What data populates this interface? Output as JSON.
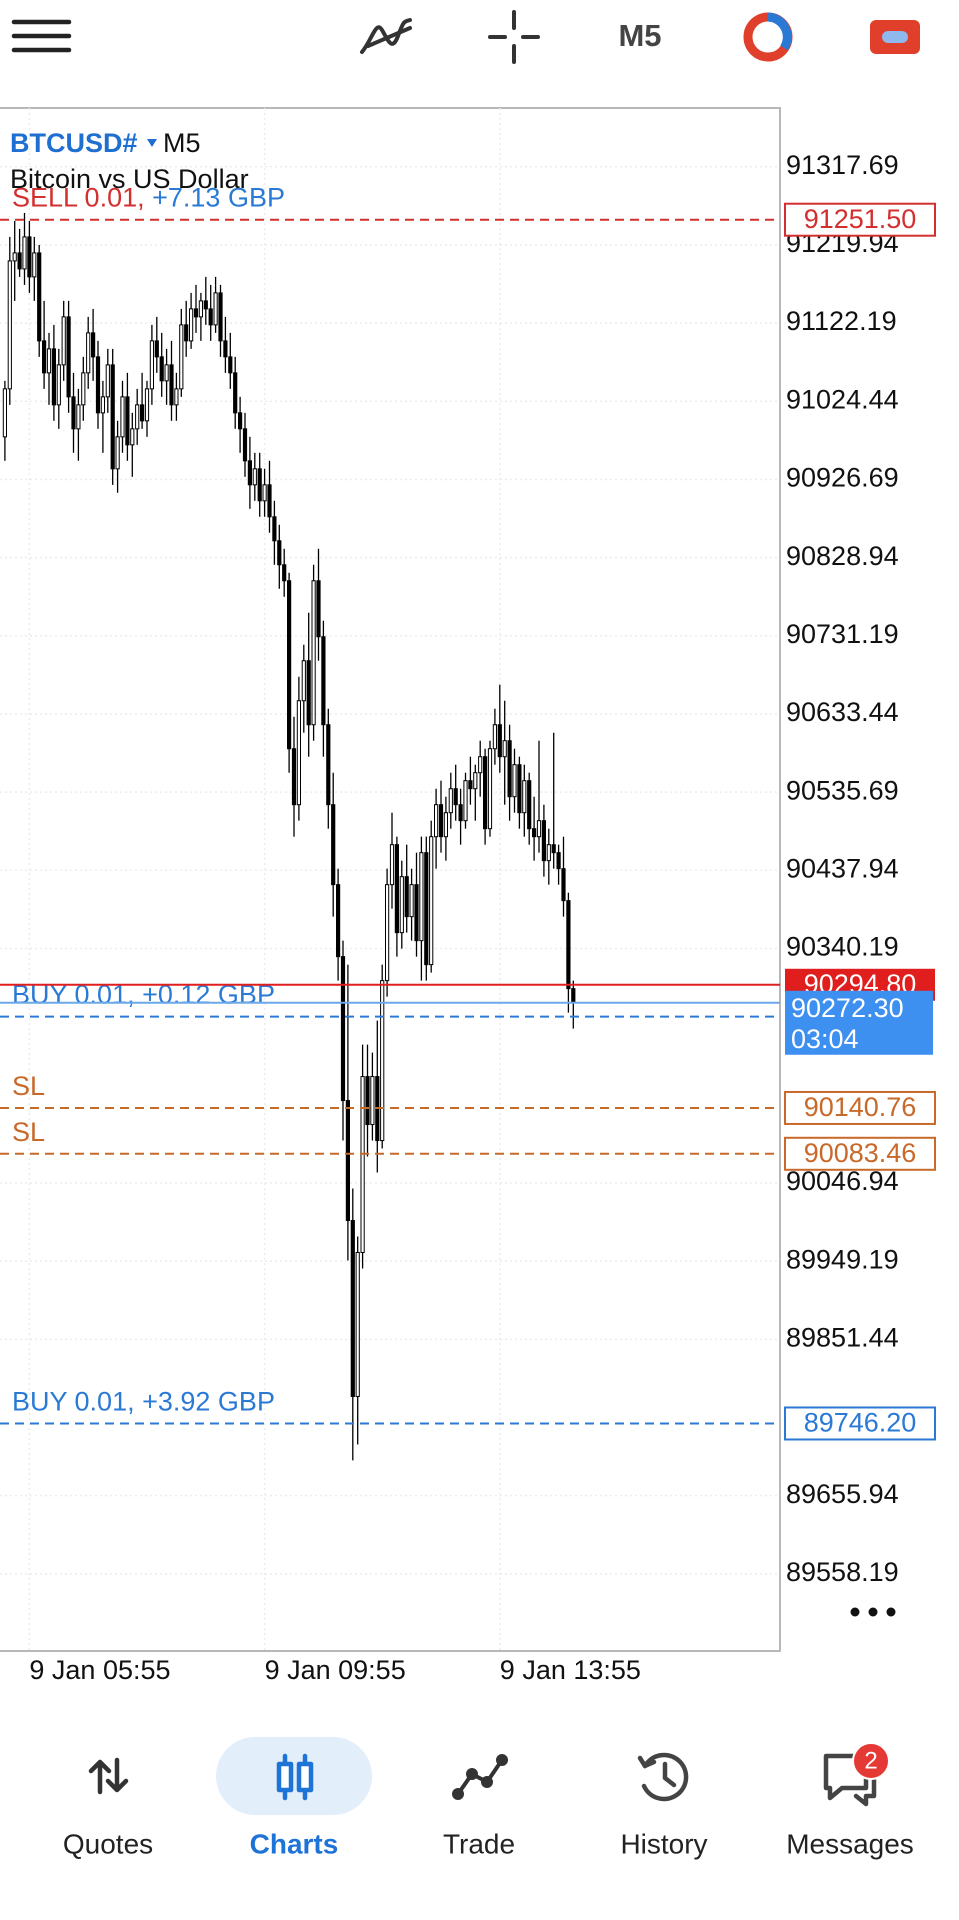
{
  "ui": {
    "toolbar": {
      "timeframe": "M5"
    },
    "symbol": {
      "name": "BTCUSD#",
      "timeframe": "M5",
      "description": "Bitcoin vs US Dollar"
    },
    "nav": [
      {
        "label": "Quotes"
      },
      {
        "label": "Charts",
        "active": true
      },
      {
        "label": "Trade"
      },
      {
        "label": "History"
      },
      {
        "label": "Messages",
        "badge": 2
      }
    ]
  },
  "chart_data": {
    "type": "candlestick",
    "ylim": [
      89461.7,
      91391.2
    ],
    "yticks": [
      91317.69,
      91219.94,
      91122.19,
      91024.44,
      90926.69,
      90828.94,
      90731.19,
      90633.44,
      90535.69,
      90437.94,
      90340.19,
      90046.94,
      89949.19,
      89851.44,
      89655.94,
      89558.19
    ],
    "grid": true,
    "candle_color": "#000000",
    "profit_color": "#2a7ad5",
    "categories": [
      null,
      null,
      null,
      null,
      null,
      "9 Jan 05:55",
      null,
      null,
      null,
      null,
      null,
      null,
      null,
      null,
      null,
      null,
      null,
      null,
      null,
      null,
      null,
      null,
      null,
      null,
      null,
      null,
      null,
      null,
      null,
      null,
      null,
      null,
      null,
      null,
      null,
      null,
      null,
      null,
      null,
      null,
      null,
      null,
      null,
      null,
      null,
      null,
      null,
      null,
      null,
      null,
      null,
      null,
      null,
      "9 Jan 09:55",
      null,
      null,
      null,
      null,
      null,
      null,
      null,
      null,
      null,
      null,
      null,
      null,
      null,
      null,
      null,
      null,
      null,
      null,
      null,
      null,
      null,
      null,
      null,
      null,
      null,
      null,
      null,
      null,
      null,
      null,
      null,
      null,
      null,
      null,
      null,
      null,
      null,
      null,
      null,
      null,
      null,
      null,
      null,
      null,
      null,
      null,
      null,
      "9 Jan 13:55",
      null,
      null,
      null,
      null,
      null,
      null,
      null,
      null,
      null,
      null,
      null,
      null,
      null,
      null,
      null
    ],
    "ohlc": [
      [
        90980,
        91050,
        90950,
        91040
      ],
      [
        91040,
        91230,
        91020,
        91200
      ],
      [
        91200,
        91250,
        91150,
        91210
      ],
      [
        91210,
        91240,
        91180,
        91190
      ],
      [
        91190,
        91260,
        91170,
        91230
      ],
      [
        91230,
        91250,
        91160,
        91180
      ],
      [
        91180,
        91230,
        91150,
        91210
      ],
      [
        91210,
        91220,
        91080,
        91100
      ],
      [
        91100,
        91150,
        91040,
        91060
      ],
      [
        91060,
        91110,
        91020,
        91090
      ],
      [
        91090,
        91120,
        91000,
        91020
      ],
      [
        91020,
        91090,
        90990,
        91070
      ],
      [
        91070,
        91150,
        91050,
        91130
      ],
      [
        91130,
        91150,
        91010,
        91030
      ],
      [
        91030,
        91060,
        90960,
        90990
      ],
      [
        90990,
        91040,
        90950,
        91020
      ],
      [
        91020,
        91080,
        91000,
        91060
      ],
      [
        91060,
        91130,
        91040,
        91110
      ],
      [
        91110,
        91140,
        91050,
        91080
      ],
      [
        91080,
        91100,
        90990,
        91010
      ],
      [
        91010,
        91050,
        90960,
        91030
      ],
      [
        91030,
        91090,
        91010,
        91070
      ],
      [
        91070,
        91090,
        90920,
        90940
      ],
      [
        90940,
        91000,
        90910,
        90980
      ],
      [
        90980,
        91050,
        90960,
        91030
      ],
      [
        91030,
        91060,
        90950,
        90970
      ],
      [
        90970,
        91010,
        90930,
        90990
      ],
      [
        90990,
        91040,
        90970,
        91020
      ],
      [
        91020,
        91060,
        90990,
        91000
      ],
      [
        91000,
        91050,
        90980,
        91040
      ],
      [
        91040,
        91120,
        91020,
        91100
      ],
      [
        91100,
        91130,
        91060,
        91080
      ],
      [
        91080,
        91110,
        91030,
        91050
      ],
      [
        91050,
        91090,
        91020,
        91070
      ],
      [
        91070,
        91100,
        91000,
        91020
      ],
      [
        91020,
        91060,
        91000,
        91040
      ],
      [
        91040,
        91140,
        91030,
        91120
      ],
      [
        91120,
        91150,
        91080,
        91100
      ],
      [
        91100,
        91160,
        91090,
        91140
      ],
      [
        91140,
        91170,
        91110,
        91130
      ],
      [
        91130,
        91160,
        91100,
        91150
      ],
      [
        91150,
        91180,
        91120,
        91140
      ],
      [
        91140,
        91170,
        91100,
        91120
      ],
      [
        91120,
        91180,
        91110,
        91160
      ],
      [
        91160,
        91170,
        91080,
        91100
      ],
      [
        91100,
        91130,
        91060,
        91080
      ],
      [
        91080,
        91110,
        91040,
        91060
      ],
      [
        91060,
        91080,
        90990,
        91010
      ],
      [
        91010,
        91030,
        90960,
        90990
      ],
      [
        90990,
        91010,
        90930,
        90950
      ],
      [
        90950,
        90980,
        90890,
        90920
      ],
      [
        90920,
        90960,
        90900,
        90940
      ],
      [
        90940,
        90960,
        90880,
        90900
      ],
      [
        90900,
        90940,
        90880,
        90920
      ],
      [
        90920,
        90950,
        90860,
        90880
      ],
      [
        90880,
        90900,
        90820,
        90850
      ],
      [
        90850,
        90870,
        90790,
        90820
      ],
      [
        90820,
        90840,
        90780,
        90800
      ],
      [
        90800,
        90810,
        90560,
        90590
      ],
      [
        90590,
        90630,
        90480,
        90520
      ],
      [
        90520,
        90680,
        90500,
        90650
      ],
      [
        90650,
        90720,
        90610,
        90700
      ],
      [
        90700,
        90760,
        90580,
        90620
      ],
      [
        90620,
        90820,
        90600,
        90800
      ],
      [
        90800,
        90840,
        90700,
        90730
      ],
      [
        90730,
        90750,
        90580,
        90620
      ],
      [
        90620,
        90640,
        90490,
        90520
      ],
      [
        90520,
        90560,
        90380,
        90420
      ],
      [
        90420,
        90440,
        90300,
        90330
      ],
      [
        90330,
        90350,
        90100,
        90150
      ],
      [
        90150,
        90320,
        89950,
        90000
      ],
      [
        90000,
        90040,
        89700,
        89780
      ],
      [
        89780,
        89980,
        89720,
        89960
      ],
      [
        89960,
        90220,
        89940,
        90180
      ],
      [
        90180,
        90220,
        90080,
        90120
      ],
      [
        90120,
        90210,
        90100,
        90180
      ],
      [
        90180,
        90250,
        90060,
        90100
      ],
      [
        90100,
        90320,
        90090,
        90300
      ],
      [
        90300,
        90440,
        90280,
        90420
      ],
      [
        90420,
        90510,
        90390,
        90470
      ],
      [
        90470,
        90480,
        90330,
        90360
      ],
      [
        90360,
        90450,
        90340,
        90430
      ],
      [
        90430,
        90470,
        90360,
        90380
      ],
      [
        90380,
        90440,
        90350,
        90420
      ],
      [
        90420,
        90460,
        90330,
        90350
      ],
      [
        90350,
        90480,
        90300,
        90460
      ],
      [
        90460,
        90480,
        90300,
        90320
      ],
      [
        90320,
        90500,
        90310,
        90480
      ],
      [
        90480,
        90540,
        90440,
        90520
      ],
      [
        90520,
        90550,
        90460,
        90480
      ],
      [
        90480,
        90530,
        90450,
        90510
      ],
      [
        90510,
        90560,
        90490,
        90540
      ],
      [
        90540,
        90570,
        90500,
        90520
      ],
      [
        90520,
        90540,
        90470,
        90500
      ],
      [
        90500,
        90560,
        90490,
        90550
      ],
      [
        90550,
        90580,
        90520,
        90540
      ],
      [
        90540,
        90570,
        90500,
        90560
      ],
      [
        90560,
        90600,
        90530,
        90580
      ],
      [
        90580,
        90590,
        90470,
        90490
      ],
      [
        90490,
        90600,
        90480,
        90590
      ],
      [
        90590,
        90640,
        90570,
        90620
      ],
      [
        90620,
        90670,
        90560,
        90580
      ],
      [
        90580,
        90650,
        90520,
        90600
      ],
      [
        90600,
        90620,
        90500,
        90530
      ],
      [
        90530,
        90590,
        90510,
        90570
      ],
      [
        90570,
        90580,
        90490,
        90510
      ],
      [
        90510,
        90570,
        90480,
        90550
      ],
      [
        90550,
        90560,
        90470,
        90490
      ],
      [
        90490,
        90530,
        90450,
        90480
      ],
      [
        90480,
        90600,
        90460,
        90500
      ],
      [
        90500,
        90520,
        90430,
        90450
      ],
      [
        90450,
        90490,
        90420,
        90470
      ],
      [
        90470,
        90610,
        90440,
        90460
      ],
      [
        90460,
        90470,
        90420,
        90440
      ],
      [
        90440,
        90480,
        90380,
        90400
      ],
      [
        90400,
        90410,
        90260,
        90290
      ],
      [
        90290,
        90300,
        90240,
        90272.3
      ]
    ],
    "orders": [
      {
        "label": "SELL 0.01,",
        "profit": "+7.13 GBP",
        "price": {
          "value": 91251.5,
          "label": "91251.50"
        },
        "color": "#d32f2f",
        "price_tag": true
      },
      {
        "label": "BUY 0.01,",
        "profit": "+0.12 GBP",
        "price": 90255,
        "color": "#2a7ad5",
        "price_tag": false
      },
      {
        "label": "SL",
        "price": 90140.76,
        "color": "#c8692a",
        "price_tag": true
      },
      {
        "label": "SL",
        "price": 90083.46,
        "color": "#c8692a",
        "price_tag": true
      },
      {
        "label": "BUY 0.01,",
        "profit": "+3.92 GBP",
        "price": {
          "value": 89746.2,
          "label": "89746.20"
        },
        "color": "#2a7ad5",
        "price_tag": true
      }
    ],
    "ask": {
      "price": {
        "value": 90294.8,
        "label": "90294.80"
      },
      "color": "#e01e1e"
    },
    "bid": {
      "price": {
        "value": 90272.3,
        "label": "90272.30"
      },
      "timer": "03:04",
      "color": "#3d8ff0"
    }
  }
}
